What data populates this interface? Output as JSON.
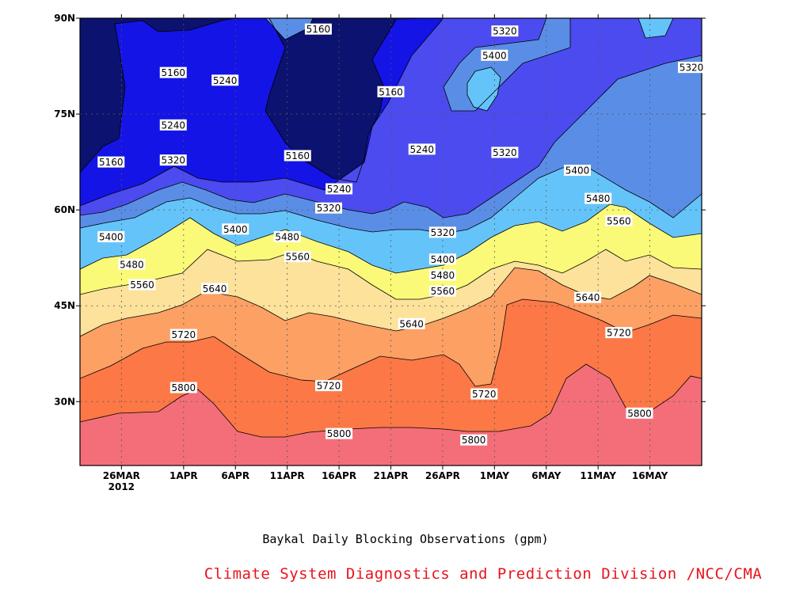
{
  "chart_data": {
    "type": "contour",
    "caption": "Baykal Daily Blocking Observations (gpm)",
    "credit": "Climate System Diagnostics and Prediction Division /NCC/CMA",
    "x_axis": {
      "ticks": [
        {
          "label": "26MAR",
          "sub": "2012",
          "date": "2012-03-26"
        },
        {
          "label": "1APR",
          "date": "2012-04-01"
        },
        {
          "label": "6APR",
          "date": "2012-04-06"
        },
        {
          "label": "11APR",
          "date": "2012-04-11"
        },
        {
          "label": "16APR",
          "date": "2012-04-16"
        },
        {
          "label": "21APR",
          "date": "2012-04-21"
        },
        {
          "label": "26APR",
          "date": "2012-04-26"
        },
        {
          "label": "1MAY",
          "date": "2012-05-01"
        },
        {
          "label": "6MAY",
          "date": "2012-05-06"
        },
        {
          "label": "11MAY",
          "date": "2012-05-11"
        },
        {
          "label": "16MAY",
          "date": "2012-05-16"
        }
      ],
      "range": [
        "2012-03-22",
        "2012-05-21"
      ]
    },
    "y_axis": {
      "ticks": [
        {
          "label": "30N",
          "value": 30
        },
        {
          "label": "45N",
          "value": 45
        },
        {
          "label": "60N",
          "value": 60
        },
        {
          "label": "75N",
          "value": 75
        },
        {
          "label": "90N",
          "value": 90
        }
      ],
      "range": [
        20,
        90
      ]
    },
    "grid": true,
    "levels": [
      5160,
      5240,
      5320,
      5400,
      5480,
      5560,
      5640,
      5720,
      5800
    ],
    "fill_colors": [
      "#0c1270",
      "#1414e6",
      "#4b4bf0",
      "#5a8ee6",
      "#64c4fa",
      "#fafa78",
      "#fce29b",
      "#fca064",
      "#fc7846",
      "#f46e7a"
    ],
    "contour_labels": [
      {
        "value": "5160",
        "date": "2012-03-25",
        "lat": 67.5
      },
      {
        "value": "5160",
        "date": "2012-03-31",
        "lat": 81.5
      },
      {
        "value": "5160",
        "date": "2012-04-14",
        "lat": 88.3
      },
      {
        "value": "5160",
        "date": "2012-04-12",
        "lat": 68.5
      },
      {
        "value": "5160",
        "date": "2012-04-21",
        "lat": 78.5
      },
      {
        "value": "5240",
        "date": "2012-04-05",
        "lat": 80.3
      },
      {
        "value": "5240",
        "date": "2012-03-31",
        "lat": 73.3
      },
      {
        "value": "5240",
        "date": "2012-04-16",
        "lat": 63.3
      },
      {
        "value": "5240",
        "date": "2012-04-24",
        "lat": 69.5
      },
      {
        "value": "5320",
        "date": "2012-03-31",
        "lat": 67.8
      },
      {
        "value": "5320",
        "date": "2012-04-15",
        "lat": 60.3
      },
      {
        "value": "5320",
        "date": "2012-04-26",
        "lat": 56.5
      },
      {
        "value": "5320",
        "date": "2012-05-02",
        "lat": 69.0
      },
      {
        "value": "5320",
        "date": "2012-05-02",
        "lat": 88.0
      },
      {
        "value": "5320",
        "date": "2012-05-21",
        "lat": 82.3
      },
      {
        "value": "5400",
        "date": "2012-03-25",
        "lat": 55.8
      },
      {
        "value": "5400",
        "date": "2012-04-06",
        "lat": 57.0
      },
      {
        "value": "5400",
        "date": "2012-04-26",
        "lat": 52.3
      },
      {
        "value": "5400",
        "date": "2012-05-01",
        "lat": 84.2
      },
      {
        "value": "5400",
        "date": "2012-05-09",
        "lat": 66.2
      },
      {
        "value": "5480",
        "date": "2012-03-27",
        "lat": 51.5
      },
      {
        "value": "5480",
        "date": "2012-04-11",
        "lat": 55.8
      },
      {
        "value": "5480",
        "date": "2012-04-26",
        "lat": 49.8
      },
      {
        "value": "5480",
        "date": "2012-05-11",
        "lat": 61.8
      },
      {
        "value": "5560",
        "date": "2012-03-28",
        "lat": 48.3
      },
      {
        "value": "5560",
        "date": "2012-04-12",
        "lat": 52.7
      },
      {
        "value": "5560",
        "date": "2012-04-26",
        "lat": 47.3
      },
      {
        "value": "5560",
        "date": "2012-05-13",
        "lat": 58.3
      },
      {
        "value": "5640",
        "date": "2012-04-04",
        "lat": 47.7
      },
      {
        "value": "5640",
        "date": "2012-04-23",
        "lat": 42.2
      },
      {
        "value": "5640",
        "date": "2012-05-10",
        "lat": 46.3
      },
      {
        "value": "5720",
        "date": "2012-04-01",
        "lat": 40.5
      },
      {
        "value": "5720",
        "date": "2012-04-15",
        "lat": 32.5
      },
      {
        "value": "5720",
        "date": "2012-04-30",
        "lat": 31.2
      },
      {
        "value": "5720",
        "date": "2012-05-13",
        "lat": 40.8
      },
      {
        "value": "5800",
        "date": "2012-04-01",
        "lat": 32.2
      },
      {
        "value": "5800",
        "date": "2012-04-16",
        "lat": 25.0
      },
      {
        "value": "5800",
        "date": "2012-04-29",
        "lat": 24.0
      },
      {
        "value": "5800",
        "date": "2012-05-15",
        "lat": 28.2
      }
    ]
  }
}
